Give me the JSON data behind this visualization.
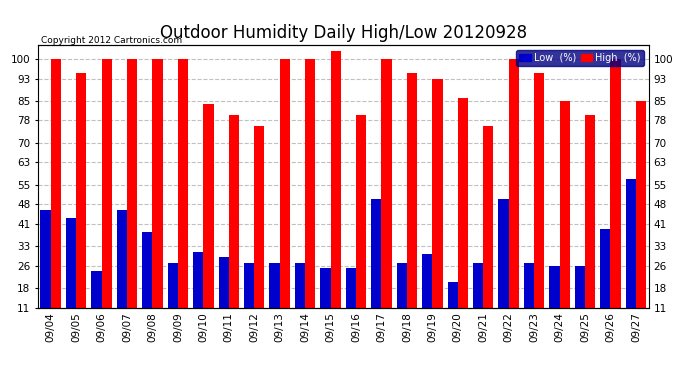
{
  "title": "Outdoor Humidity Daily High/Low 20120928",
  "copyright": "Copyright 2012 Cartronics.com",
  "categories": [
    "09/04",
    "09/05",
    "09/06",
    "09/07",
    "09/08",
    "09/09",
    "09/10",
    "09/11",
    "09/12",
    "09/13",
    "09/14",
    "09/15",
    "09/16",
    "09/17",
    "09/18",
    "09/19",
    "09/20",
    "09/21",
    "09/22",
    "09/23",
    "09/24",
    "09/25",
    "09/26",
    "09/27"
  ],
  "high_values": [
    100,
    95,
    100,
    100,
    100,
    100,
    84,
    80,
    76,
    100,
    100,
    103,
    80,
    100,
    95,
    93,
    86,
    76,
    100,
    95,
    85,
    80,
    100,
    85
  ],
  "low_values": [
    46,
    43,
    24,
    46,
    38,
    27,
    31,
    29,
    27,
    27,
    27,
    25,
    25,
    50,
    27,
    30,
    20,
    27,
    50,
    27,
    26,
    26,
    39,
    57
  ],
  "bar_width": 0.4,
  "bg_color": "#ffffff",
  "plot_bg_color": "#ffffff",
  "high_color": "#ff0000",
  "low_color": "#0000cc",
  "grid_color": "#c0c0c0",
  "yticks": [
    11,
    18,
    26,
    33,
    41,
    48,
    55,
    63,
    70,
    78,
    85,
    93,
    100
  ],
  "ymin": 11,
  "ymax": 105,
  "title_fontsize": 12,
  "tick_fontsize": 7.5,
  "legend_low_label": "Low  (%)",
  "legend_high_label": "High  (%)"
}
